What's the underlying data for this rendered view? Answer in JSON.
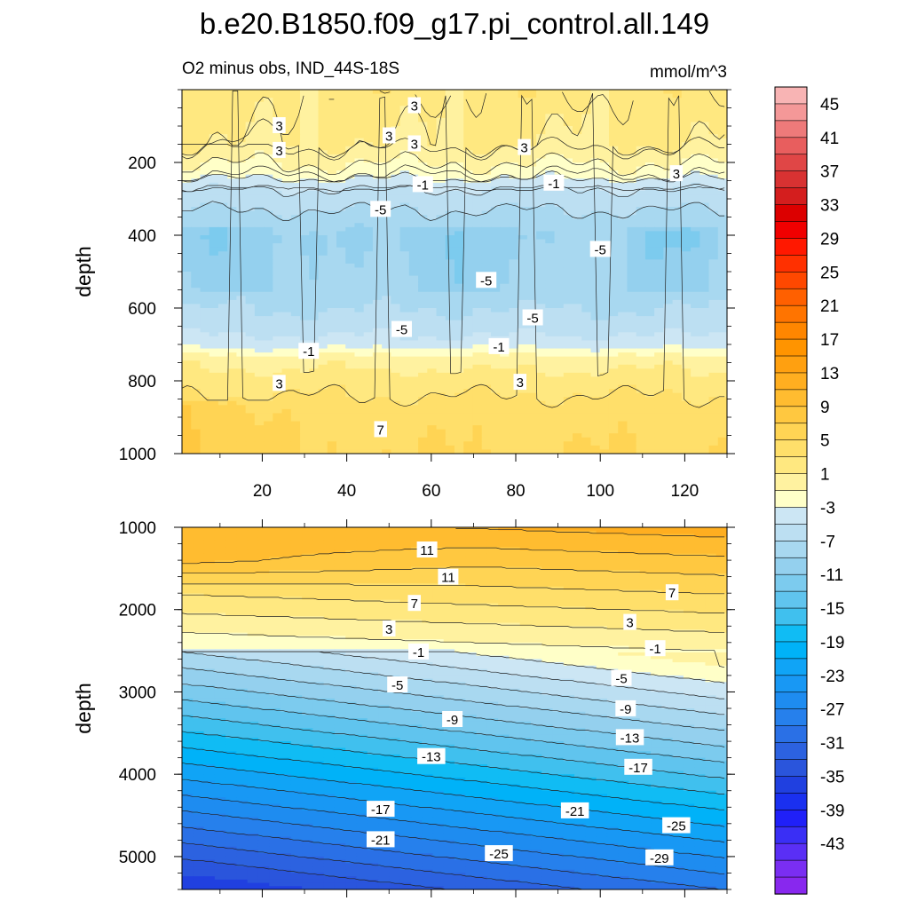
{
  "title": "b.e20.B1850.f09_g17.pi_control.all.149",
  "chart_data": {
    "type": "contour",
    "variable_label": "O2 minus obs, IND_44S-18S",
    "units": "mmol/m^3",
    "x_range": [
      1,
      130
    ],
    "x_ticks": [
      "20",
      "40",
      "60",
      "80",
      "100",
      "120"
    ],
    "panels": [
      {
        "id": "upper",
        "ylabel": "depth",
        "ylim": [
          0,
          1000
        ],
        "y_ticks": [
          {
            "value": 200,
            "label": "200"
          },
          {
            "value": 400,
            "label": "400"
          },
          {
            "value": 600,
            "label": "600"
          },
          {
            "value": 800,
            "label": "800"
          },
          {
            "value": 1000,
            "label": "1000"
          }
        ],
        "bands": [
          {
            "depth": 0,
            "value": 4
          },
          {
            "depth": 150,
            "value": 3
          },
          {
            "depth": 230,
            "value": 0
          },
          {
            "depth": 270,
            "value": -3
          },
          {
            "depth": 330,
            "value": -5
          },
          {
            "depth": 400,
            "value": -7
          },
          {
            "depth": 560,
            "value": -6
          },
          {
            "depth": 650,
            "value": -4
          },
          {
            "depth": 700,
            "value": -2
          },
          {
            "depth": 740,
            "value": 2
          },
          {
            "depth": 800,
            "value": 4
          },
          {
            "depth": 880,
            "value": 6
          },
          {
            "depth": 1000,
            "value": 7
          }
        ],
        "contour_labels": [
          {
            "x": 24,
            "depth": 100,
            "text": "3"
          },
          {
            "x": 24,
            "depth": 168,
            "text": "3"
          },
          {
            "x": 50,
            "depth": 128,
            "text": "3"
          },
          {
            "x": 56,
            "depth": 45,
            "text": "3"
          },
          {
            "x": 56,
            "depth": 150,
            "text": "3"
          },
          {
            "x": 82,
            "depth": 160,
            "text": "3"
          },
          {
            "x": 118,
            "depth": 232,
            "text": "3"
          },
          {
            "x": 58,
            "depth": 262,
            "text": "-1"
          },
          {
            "x": 89,
            "depth": 258,
            "text": "-1"
          },
          {
            "x": 48,
            "depth": 330,
            "text": "-5"
          },
          {
            "x": 100,
            "depth": 440,
            "text": "-5"
          },
          {
            "x": 73,
            "depth": 525,
            "text": "-5"
          },
          {
            "x": 84,
            "depth": 628,
            "text": "-5"
          },
          {
            "x": 53,
            "depth": 660,
            "text": "-5"
          },
          {
            "x": 31,
            "depth": 720,
            "text": "-1"
          },
          {
            "x": 76,
            "depth": 707,
            "text": "-1"
          },
          {
            "x": 24,
            "depth": 808,
            "text": "3"
          },
          {
            "x": 81,
            "depth": 805,
            "text": "3"
          },
          {
            "x": 48,
            "depth": 935,
            "text": "7"
          }
        ]
      },
      {
        "id": "lower",
        "ylabel": "depth",
        "ylim": [
          1000,
          5400
        ],
        "y_ticks": [
          {
            "value": 1000,
            "label": "1000"
          },
          {
            "value": 2000,
            "label": "2000"
          },
          {
            "value": 3000,
            "label": "3000"
          },
          {
            "value": 4000,
            "label": "4000"
          },
          {
            "value": 5000,
            "label": "5000"
          }
        ],
        "contour_labels": [
          {
            "x": 59,
            "depth": 1280,
            "text": "11"
          },
          {
            "x": 64,
            "depth": 1610,
            "text": "11"
          },
          {
            "x": 56,
            "depth": 1930,
            "text": "7"
          },
          {
            "x": 117,
            "depth": 1800,
            "text": "7"
          },
          {
            "x": 50,
            "depth": 2240,
            "text": "3"
          },
          {
            "x": 107,
            "depth": 2160,
            "text": "3"
          },
          {
            "x": 57,
            "depth": 2520,
            "text": "-1"
          },
          {
            "x": 113,
            "depth": 2480,
            "text": "-1"
          },
          {
            "x": 52,
            "depth": 2920,
            "text": "-5"
          },
          {
            "x": 105,
            "depth": 2840,
            "text": "-5"
          },
          {
            "x": 65,
            "depth": 3340,
            "text": "-9"
          },
          {
            "x": 106,
            "depth": 3210,
            "text": "-9"
          },
          {
            "x": 60,
            "depth": 3790,
            "text": "-13"
          },
          {
            "x": 107,
            "depth": 3560,
            "text": "-13"
          },
          {
            "x": 109,
            "depth": 3920,
            "text": "-17"
          },
          {
            "x": 48,
            "depth": 4430,
            "text": "-17"
          },
          {
            "x": 94,
            "depth": 4450,
            "text": "-21"
          },
          {
            "x": 48,
            "depth": 4800,
            "text": "-21"
          },
          {
            "x": 118,
            "depth": 4630,
            "text": "-25"
          },
          {
            "x": 76,
            "depth": 4970,
            "text": "-25"
          },
          {
            "x": 114,
            "depth": 5020,
            "text": "-29"
          }
        ]
      }
    ],
    "colorbar": {
      "labels": [
        "45",
        "41",
        "37",
        "33",
        "29",
        "25",
        "21",
        "17",
        "13",
        "9",
        "5",
        "1",
        "-3",
        "-7",
        "-11",
        "-15",
        "-19",
        "-23",
        "-27",
        "-31",
        "-35",
        "-39",
        "-43"
      ],
      "levels": [
        -47,
        -45,
        -43,
        -41,
        -39,
        -37,
        -35,
        -33,
        -31,
        -29,
        -27,
        -25,
        -23,
        -21,
        -19,
        -17,
        -15,
        -13,
        -11,
        -9,
        -7,
        -5,
        -3,
        -1,
        1,
        3,
        5,
        7,
        9,
        11,
        13,
        15,
        17,
        19,
        21,
        23,
        25,
        27,
        29,
        31,
        33,
        35,
        37,
        39,
        41,
        43,
        45,
        47
      ],
      "colors": [
        "#8828ee",
        "#7a2ef2",
        "#5a2ff5",
        "#3a2ff5",
        "#2020f8",
        "#1a30f0",
        "#2040e0",
        "#2a55dc",
        "#2c62e0",
        "#2a70e6",
        "#2680ec",
        "#1e8cf0",
        "#1898f4",
        "#10a4f6",
        "#00b2f8",
        "#10bcf4",
        "#40c0ee",
        "#60c4ee",
        "#7ccbee",
        "#94d0ee",
        "#a8d8f0",
        "#bcdff2",
        "#cce6f4",
        "#ffffc8",
        "#fff2a0",
        "#ffe880",
        "#ffdf6a",
        "#ffd454",
        "#ffc840",
        "#ffbc30",
        "#ffae20",
        "#ffa010",
        "#ff9400",
        "#ff8600",
        "#ff7400",
        "#ff6000",
        "#ff4800",
        "#ff3000",
        "#ff1800",
        "#f00000",
        "#dc0000",
        "#d41e1e",
        "#d83232",
        "#e04646",
        "#e85e5e",
        "#ee7a7a",
        "#f49898",
        "#f8b4b4"
      ]
    }
  }
}
